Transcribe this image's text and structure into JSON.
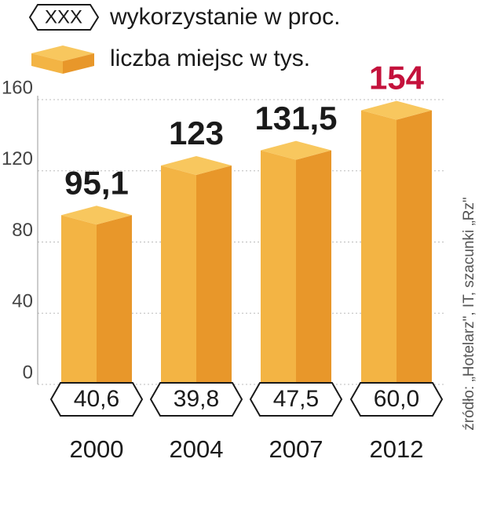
{
  "chart_data": {
    "type": "bar3d",
    "legend": {
      "usage_icon_text": "XXX"
    },
    "categories": [
      "2000",
      "2004",
      "2007",
      "2012"
    ],
    "series": [
      {
        "name": "liczba miejsc w tys.",
        "color": "#f3b444",
        "values": [
          95.1,
          123,
          131.5,
          154
        ],
        "value_labels": [
          "95,1",
          "123",
          "131,5",
          "154"
        ],
        "value_label_colors": [
          "#1a1a1a",
          "#1a1a1a",
          "#1a1a1a",
          "#c4123c"
        ]
      },
      {
        "name": "wykorzystanie w proc.",
        "values": [
          40.6,
          39.8,
          47.5,
          60.0
        ],
        "value_labels": [
          "40,6",
          "39,8",
          "47,5",
          "60,0"
        ]
      }
    ],
    "ylim": [
      0,
      160
    ],
    "yticks": [
      0,
      40,
      80,
      120,
      160
    ],
    "grid": true,
    "source": "źródło: „Hotelarz\", IT, szacunki „Rz\""
  }
}
